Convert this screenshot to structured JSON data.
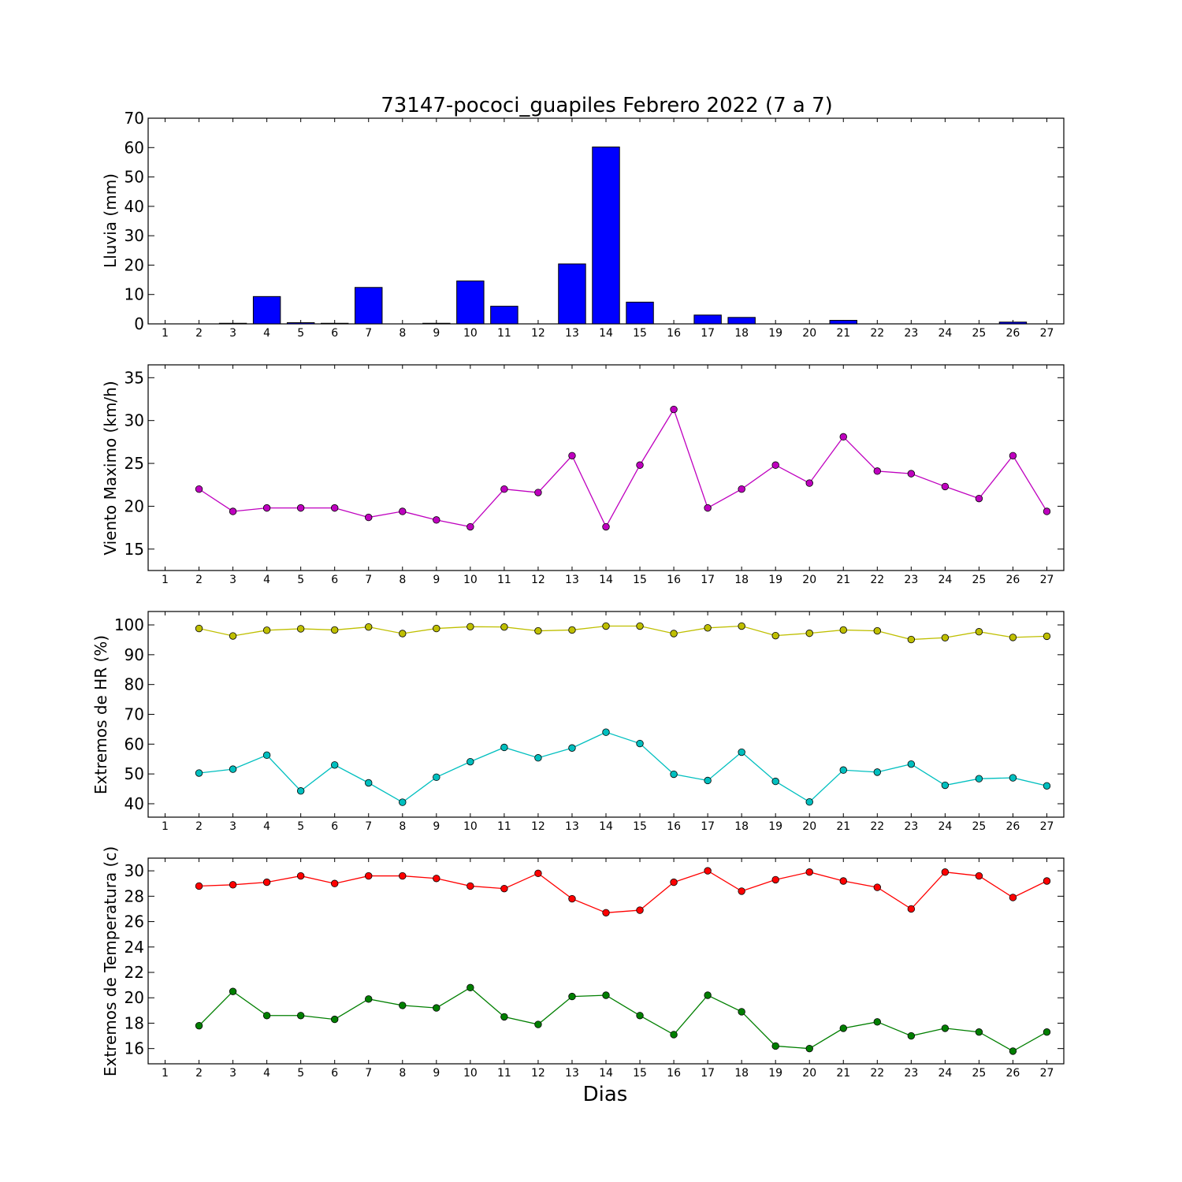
{
  "title": "73147-pococi_guapiles Febrero 2022  (7 a 7)",
  "xlabel": "Dias",
  "chart_data": [
    {
      "type": "bar",
      "ylabel": "Lluvia (mm)",
      "color": "#0000ff",
      "x": [
        1,
        2,
        3,
        4,
        5,
        6,
        7,
        8,
        9,
        10,
        11,
        12,
        13,
        14,
        15,
        16,
        17,
        18,
        19,
        20,
        21,
        22,
        23,
        24,
        25,
        26,
        27
      ],
      "values": [
        0,
        0,
        0.2,
        9.3,
        0.4,
        0.2,
        12.4,
        0,
        0.2,
        14.6,
        6.0,
        0,
        20.4,
        60.2,
        7.4,
        0,
        3.0,
        2.2,
        0,
        0,
        1.2,
        0,
        0,
        0,
        0,
        0.6,
        0
      ],
      "xlim": [
        0.5,
        27.5
      ],
      "ylim": [
        0,
        70
      ],
      "yticks": [
        0,
        10,
        20,
        30,
        40,
        50,
        60,
        70
      ],
      "xticks": [
        1,
        2,
        3,
        4,
        5,
        6,
        7,
        8,
        9,
        10,
        11,
        12,
        13,
        14,
        15,
        16,
        17,
        18,
        19,
        20,
        21,
        22,
        23,
        24,
        25,
        26,
        27
      ]
    },
    {
      "type": "line",
      "ylabel": "Viento Maximo (km/h)",
      "xlim": [
        0.5,
        27.5
      ],
      "ylim": [
        12.5,
        36.5
      ],
      "yticks": [
        15,
        20,
        25,
        30,
        35
      ],
      "xticks": [
        1,
        2,
        3,
        4,
        5,
        6,
        7,
        8,
        9,
        10,
        11,
        12,
        13,
        14,
        15,
        16,
        17,
        18,
        19,
        20,
        21,
        22,
        23,
        24,
        25,
        26,
        27
      ],
      "series": [
        {
          "color": "#bf00bf",
          "x": [
            2,
            3,
            4,
            5,
            6,
            7,
            8,
            9,
            10,
            11,
            12,
            13,
            14,
            15,
            16,
            17,
            18,
            19,
            20,
            21,
            22,
            23,
            24,
            25,
            26,
            27
          ],
          "values": [
            22.0,
            19.4,
            19.8,
            19.8,
            19.8,
            18.7,
            19.4,
            18.4,
            17.6,
            22.0,
            21.6,
            25.9,
            17.6,
            24.8,
            31.3,
            19.8,
            22.0,
            24.8,
            22.7,
            28.1,
            24.1,
            23.8,
            22.3,
            20.9,
            25.9,
            19.4
          ]
        }
      ]
    },
    {
      "type": "line",
      "ylabel": "Extremos de HR (%)",
      "xlim": [
        0.5,
        27.5
      ],
      "ylim": [
        35.5,
        104.5
      ],
      "yticks": [
        40,
        50,
        60,
        70,
        80,
        90,
        100
      ],
      "xticks": [
        1,
        2,
        3,
        4,
        5,
        6,
        7,
        8,
        9,
        10,
        11,
        12,
        13,
        14,
        15,
        16,
        17,
        18,
        19,
        20,
        21,
        22,
        23,
        24,
        25,
        26,
        27
      ],
      "series": [
        {
          "color": "#bfbf00",
          "x": [
            2,
            3,
            4,
            5,
            6,
            7,
            8,
            9,
            10,
            11,
            12,
            13,
            14,
            15,
            16,
            17,
            18,
            19,
            20,
            21,
            22,
            23,
            24,
            25,
            26,
            27
          ],
          "values": [
            98.8,
            96.3,
            98.2,
            98.7,
            98.3,
            99.3,
            97.1,
            98.8,
            99.4,
            99.3,
            98.0,
            98.3,
            99.6,
            99.6,
            97.1,
            99.0,
            99.6,
            96.4,
            97.2,
            98.3,
            98.0,
            95.1,
            95.7,
            97.7,
            95.8,
            96.2
          ]
        },
        {
          "color": "#00bfbf",
          "x": [
            2,
            3,
            4,
            5,
            6,
            7,
            8,
            9,
            10,
            11,
            12,
            13,
            14,
            15,
            16,
            17,
            18,
            19,
            20,
            21,
            22,
            23,
            24,
            25,
            26,
            27
          ],
          "values": [
            50.3,
            51.6,
            56.3,
            44.3,
            53.0,
            47.0,
            40.5,
            48.9,
            54.1,
            58.9,
            55.4,
            58.7,
            64.0,
            60.2,
            49.9,
            47.8,
            57.3,
            47.5,
            40.6,
            51.3,
            50.6,
            53.3,
            46.2,
            48.4,
            48.7,
            46.0
          ]
        }
      ]
    },
    {
      "type": "line",
      "ylabel": "Extremos de Temperatura (c)",
      "xlim": [
        0.5,
        27.5
      ],
      "ylim": [
        14.8,
        31.0
      ],
      "yticks": [
        16,
        18,
        20,
        22,
        24,
        26,
        28,
        30
      ],
      "xticks": [
        1,
        2,
        3,
        4,
        5,
        6,
        7,
        8,
        9,
        10,
        11,
        12,
        13,
        14,
        15,
        16,
        17,
        18,
        19,
        20,
        21,
        22,
        23,
        24,
        25,
        26,
        27
      ],
      "series": [
        {
          "color": "#ff0000",
          "x": [
            2,
            3,
            4,
            5,
            6,
            7,
            8,
            9,
            10,
            11,
            12,
            13,
            14,
            15,
            16,
            17,
            18,
            19,
            20,
            21,
            22,
            23,
            24,
            25,
            26,
            27
          ],
          "values": [
            28.8,
            28.9,
            29.1,
            29.6,
            29.0,
            29.6,
            29.6,
            29.4,
            28.8,
            28.6,
            29.8,
            27.8,
            26.7,
            26.9,
            29.1,
            30.0,
            28.4,
            29.3,
            29.9,
            29.2,
            28.7,
            27.0,
            29.9,
            29.6,
            27.9,
            29.2
          ]
        },
        {
          "color": "#007f00",
          "x": [
            2,
            3,
            4,
            5,
            6,
            7,
            8,
            9,
            10,
            11,
            12,
            13,
            14,
            15,
            16,
            17,
            18,
            19,
            20,
            21,
            22,
            23,
            24,
            25,
            26,
            27
          ],
          "values": [
            17.8,
            20.5,
            18.6,
            18.6,
            18.3,
            19.9,
            19.4,
            19.2,
            20.8,
            18.5,
            17.9,
            20.1,
            20.2,
            18.6,
            17.1,
            20.2,
            18.9,
            16.2,
            16.0,
            17.6,
            18.1,
            17.0,
            17.6,
            17.3,
            15.8,
            17.3
          ]
        }
      ]
    }
  ]
}
